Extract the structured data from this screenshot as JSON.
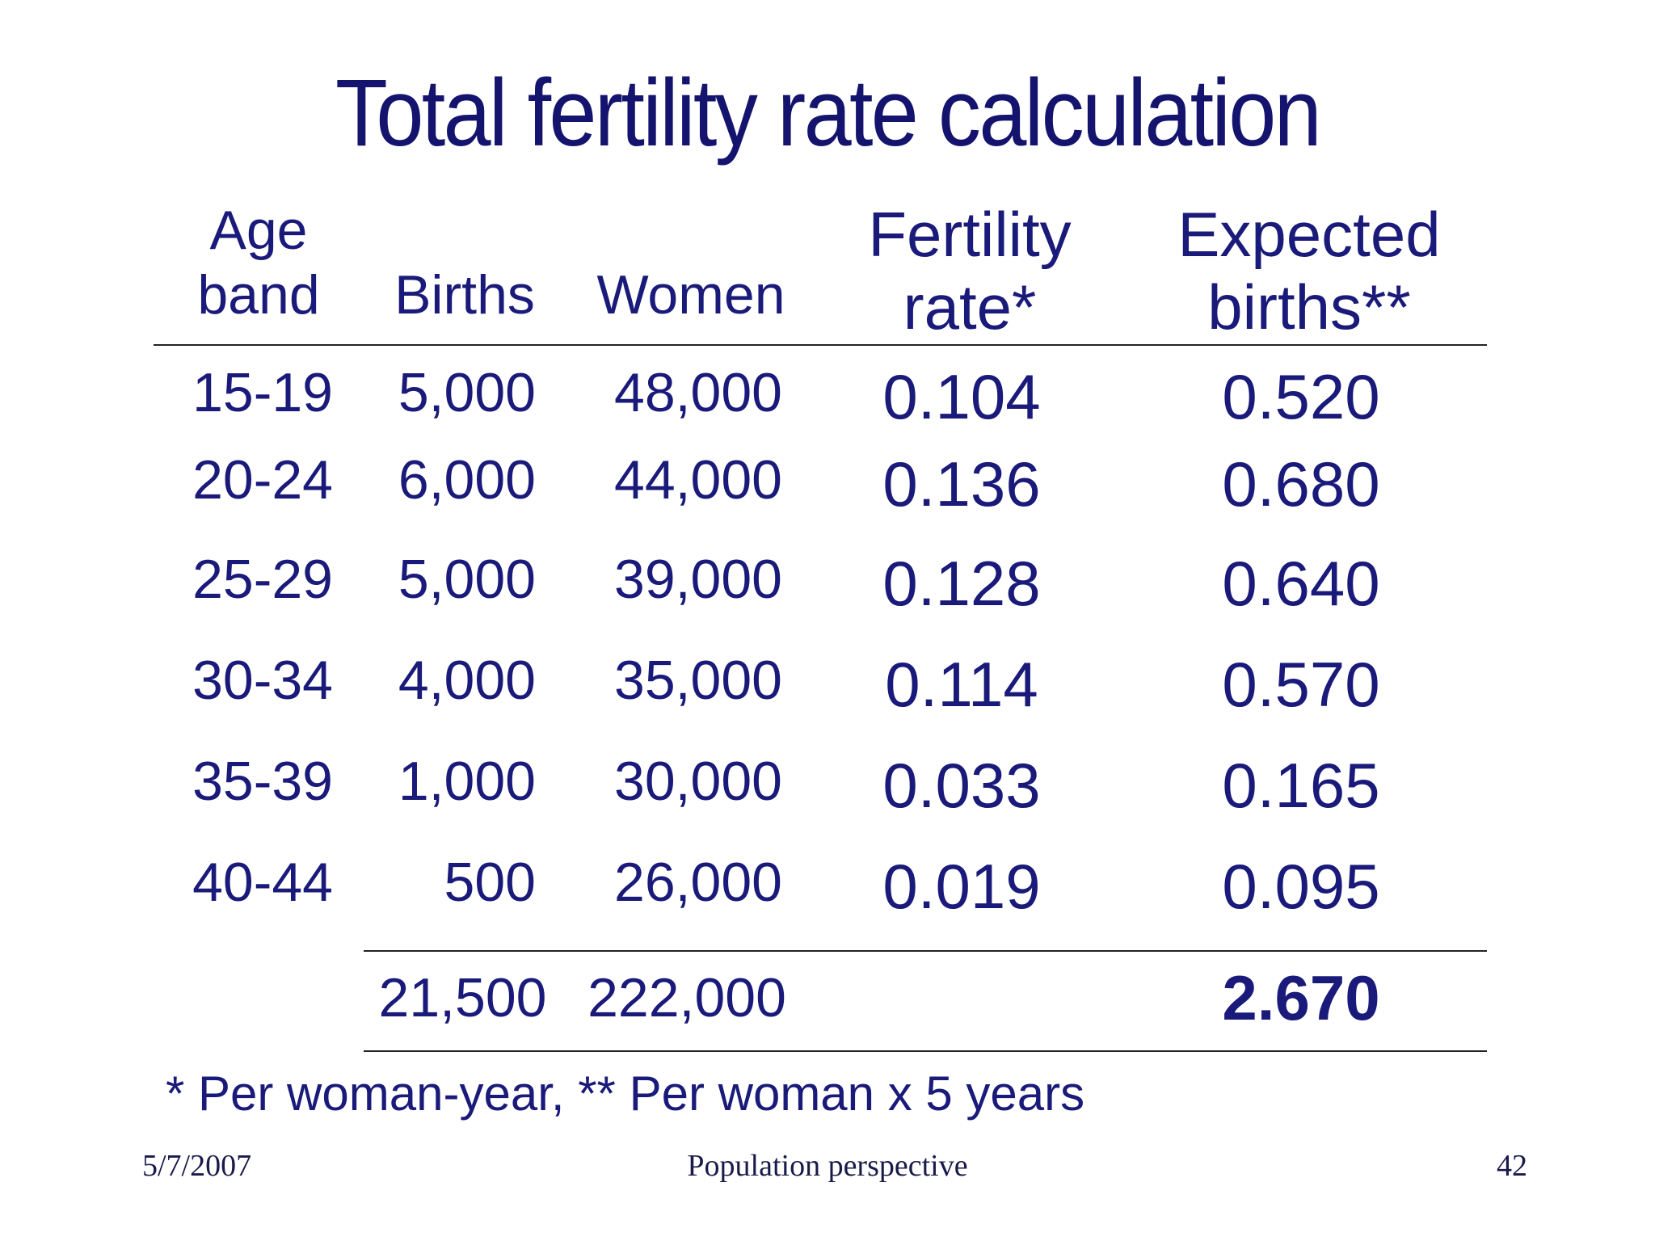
{
  "title": "Total fertility rate calculation",
  "headers": {
    "age_band_1": "Age",
    "age_band_2": "band",
    "births": "Births",
    "women": "Women",
    "fertility_1": "Fertility",
    "fertility_2": "rate*",
    "expected_1": "Expected",
    "expected_2": "births**"
  },
  "rows": [
    {
      "age": "15-19",
      "births": "5,000",
      "women": "48,000",
      "rate": "0.104",
      "expected": "0.520"
    },
    {
      "age": "20-24",
      "births": "6,000",
      "women": "44,000",
      "rate": "0.136",
      "expected": "0.680"
    },
    {
      "age": "25-29",
      "births": "5,000",
      "women": "39,000",
      "rate": "0.128",
      "expected": "0.640"
    },
    {
      "age": "30-34",
      "births": "4,000",
      "women": "35,000",
      "rate": "0.114",
      "expected": "0.570"
    },
    {
      "age": "35-39",
      "births": "1,000",
      "women": "30,000",
      "rate": "0.033",
      "expected": "0.165"
    },
    {
      "age": "40-44",
      "births": "500",
      "women": "26,000",
      "rate": "0.019",
      "expected": "0.095"
    }
  ],
  "totals": {
    "births": "21,500",
    "women": "222,000",
    "expected": "2.670"
  },
  "footnote": "* Per woman-year, ** Per woman x 5 years",
  "footer": {
    "date": "5/7/2007",
    "center": "Population perspective",
    "page": "42"
  },
  "colors": {
    "text": "#1a1a7a",
    "rule": "#222222"
  }
}
